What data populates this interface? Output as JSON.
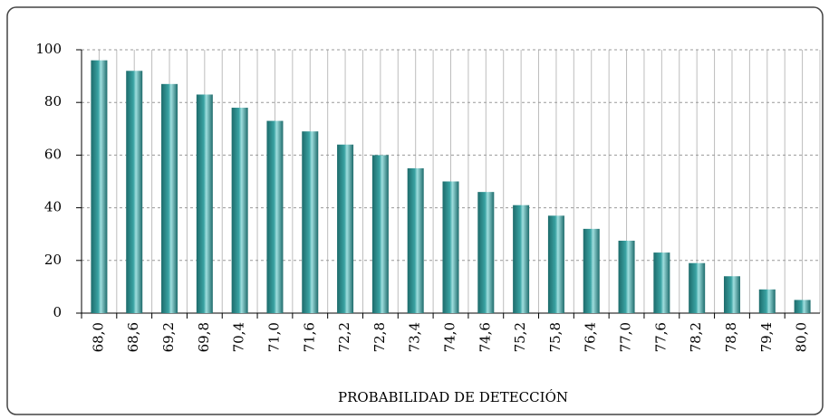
{
  "chart_data": {
    "type": "bar",
    "x_label": "PROBABILIDAD DE DETECCIÓN",
    "categories": [
      "68,0",
      "68,6",
      "69,2",
      "69,8",
      "70,4",
      "71,0",
      "71,6",
      "72,2",
      "72,8",
      "73,4",
      "74,0",
      "74,6",
      "75,2",
      "75,8",
      "76,4",
      "77,0",
      "77,6",
      "78,2",
      "78,8",
      "79,4",
      "80,0"
    ],
    "values": [
      96,
      92,
      87,
      83,
      78,
      73,
      69,
      64,
      60,
      55,
      50,
      46,
      41,
      37,
      32,
      27.5,
      23,
      19,
      14,
      9,
      5
    ],
    "color": "#3aa3a3",
    "ylim": [
      0,
      100
    ],
    "yticks": [
      0,
      20,
      40,
      60,
      80,
      100
    ],
    "grid": true
  }
}
